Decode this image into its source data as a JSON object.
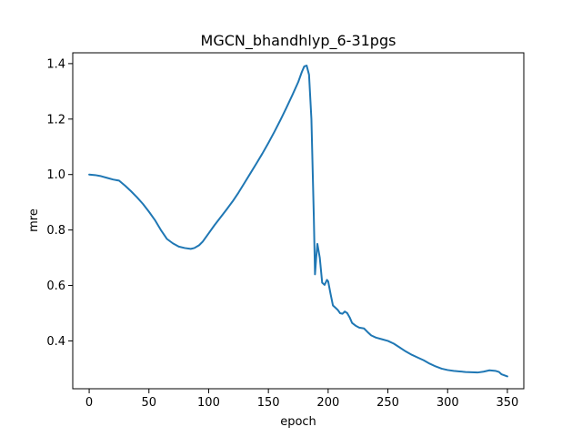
{
  "chart_data": {
    "type": "line",
    "title": "MGCN_bhandhlyp_6-31pgs",
    "xlabel": "epoch",
    "ylabel": "mre",
    "xlim": [
      -13.75,
      363.75
    ],
    "ylim": [
      0.2275,
      1.439
    ],
    "xticks": [
      0,
      50,
      100,
      150,
      200,
      250,
      300,
      350
    ],
    "yticks": [
      0.4,
      0.6,
      0.8,
      1.0,
      1.2,
      1.4
    ],
    "xtick_labels": [
      "0",
      "50",
      "100",
      "150",
      "200",
      "250",
      "300",
      "350"
    ],
    "ytick_labels": [
      "0.4",
      "0.6",
      "0.8",
      "1.0",
      "1.2",
      "1.4"
    ],
    "grid": false,
    "line_color": "#1f77b4",
    "series": [
      {
        "x": [
          0,
          5,
          10,
          15,
          20,
          25,
          30,
          35,
          40,
          45,
          50,
          55,
          60,
          65,
          70,
          75,
          80,
          85,
          88,
          92,
          95,
          100,
          105,
          110,
          115,
          120,
          125,
          130,
          135,
          140,
          145,
          150,
          155,
          160,
          165,
          170,
          175,
          178,
          180,
          182,
          184,
          186,
          188,
          189,
          190,
          191,
          193,
          195,
          197,
          199,
          200,
          202,
          204,
          206,
          208,
          210,
          212,
          214,
          216,
          218,
          220,
          223,
          226,
          230,
          233,
          236,
          240,
          245,
          250,
          255,
          260,
          265,
          270,
          275,
          280,
          285,
          290,
          295,
          300,
          305,
          310,
          315,
          320,
          325,
          330,
          335,
          340,
          343,
          345,
          350
        ],
        "y": [
          1.0,
          0.998,
          0.994,
          0.988,
          0.982,
          0.978,
          0.96,
          0.94,
          0.918,
          0.894,
          0.866,
          0.836,
          0.8,
          0.768,
          0.752,
          0.74,
          0.735,
          0.732,
          0.735,
          0.745,
          0.758,
          0.788,
          0.818,
          0.846,
          0.874,
          0.903,
          0.935,
          0.97,
          1.005,
          1.04,
          1.076,
          1.114,
          1.154,
          1.196,
          1.24,
          1.286,
          1.334,
          1.37,
          1.39,
          1.393,
          1.36,
          1.2,
          0.85,
          0.64,
          0.7,
          0.75,
          0.7,
          0.61,
          0.602,
          0.62,
          0.615,
          0.57,
          0.528,
          0.52,
          0.512,
          0.5,
          0.498,
          0.506,
          0.5,
          0.485,
          0.465,
          0.455,
          0.448,
          0.445,
          0.432,
          0.42,
          0.412,
          0.406,
          0.4,
          0.39,
          0.376,
          0.362,
          0.35,
          0.34,
          0.33,
          0.318,
          0.308,
          0.3,
          0.295,
          0.292,
          0.29,
          0.288,
          0.287,
          0.286,
          0.289,
          0.294,
          0.292,
          0.288,
          0.28,
          0.272
        ]
      }
    ]
  }
}
